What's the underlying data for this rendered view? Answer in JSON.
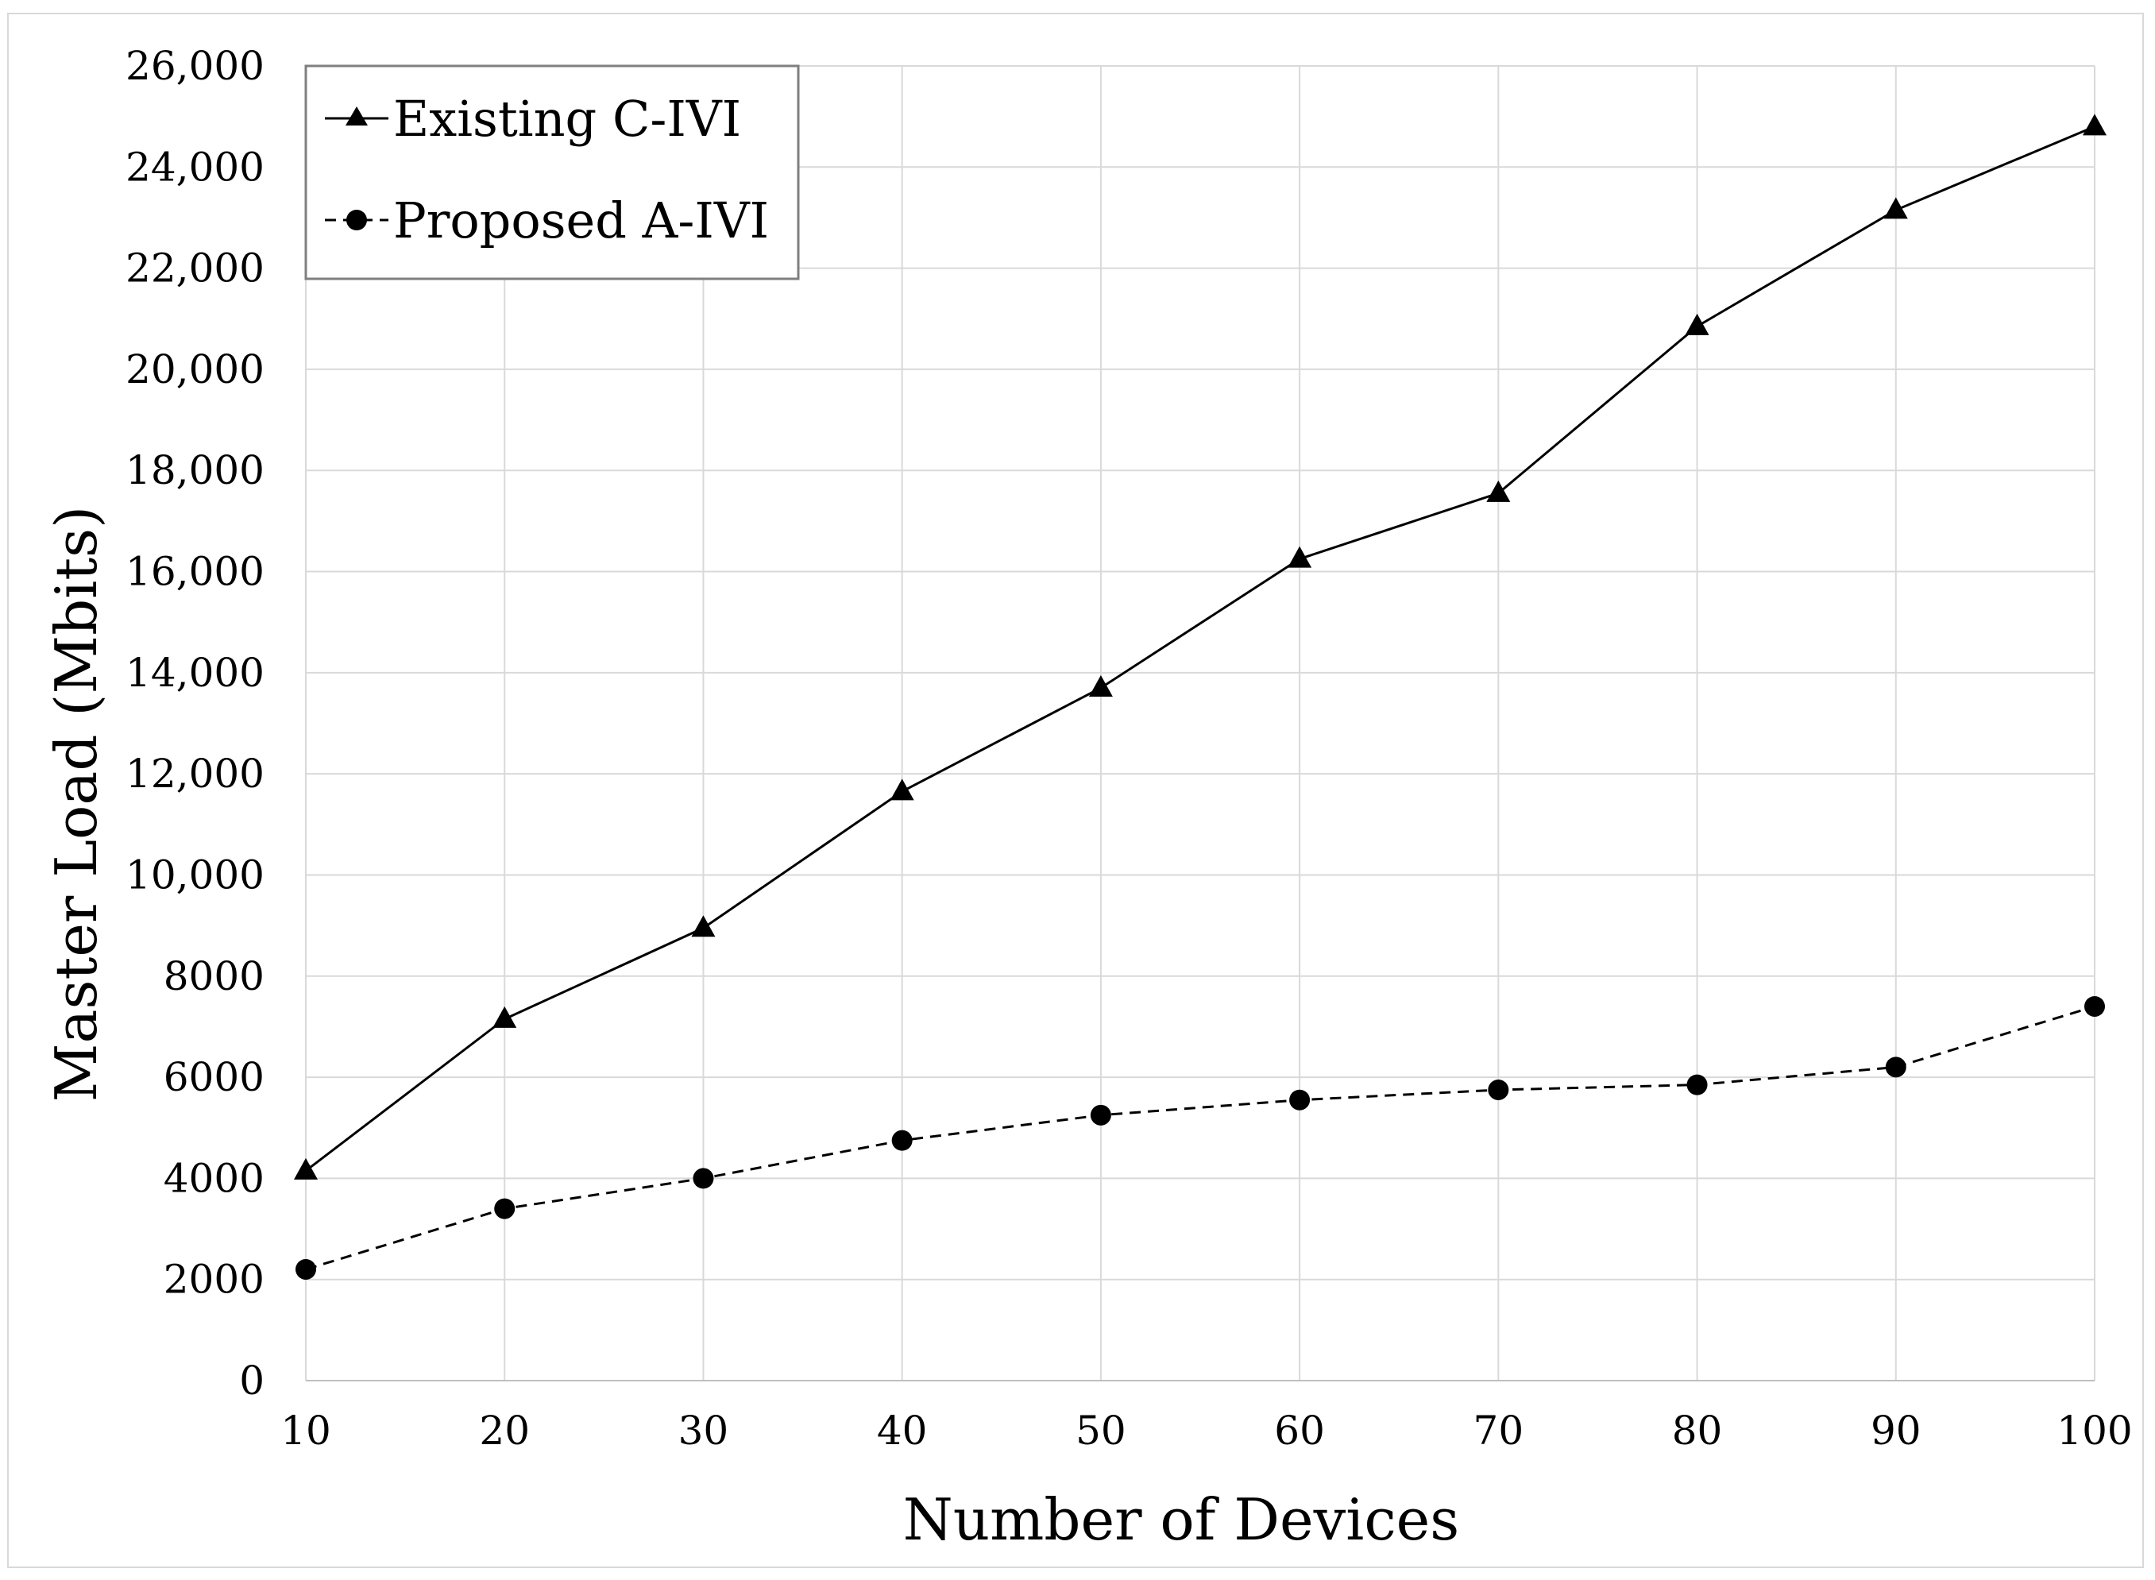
{
  "chart_data": {
    "type": "line",
    "title": "",
    "xlabel": "Number of Devices",
    "ylabel": "Master Load (Mbits)",
    "x": [
      10,
      20,
      30,
      40,
      50,
      60,
      70,
      80,
      90,
      100
    ],
    "x_tick_labels": [
      "10",
      "20",
      "30",
      "40",
      "50",
      "60",
      "70",
      "80",
      "90",
      "100"
    ],
    "y_tick_values": [
      0,
      2000,
      4000,
      6000,
      8000,
      10000,
      12000,
      14000,
      16000,
      18000,
      20000,
      22000,
      24000,
      26000
    ],
    "y_tick_labels": [
      "0",
      "2000",
      "4000",
      "6000",
      "8000",
      "10,000",
      "12,000",
      "14,000",
      "16,000",
      "18,000",
      "20,000",
      "22,000",
      "24,000",
      "26,000"
    ],
    "xlim": [
      10,
      100
    ],
    "ylim": [
      0,
      26000
    ],
    "grid": true,
    "legend_position": "top-left",
    "series": [
      {
        "name": "Existing C-IVI",
        "legend_label": "Existing C-IVI",
        "marker": "triangle",
        "line_style": "solid",
        "color": "#000000",
        "values": [
          4150,
          7150,
          8950,
          11650,
          13700,
          16250,
          17550,
          20850,
          23150,
          24800
        ]
      },
      {
        "name": "Proposed A-IVI",
        "legend_label": "Proposed A-IVI",
        "marker": "circle",
        "line_style": "dashed",
        "color": "#000000",
        "values": [
          2200,
          3400,
          4000,
          4750,
          5250,
          5550,
          5750,
          5850,
          6200,
          7400
        ]
      }
    ]
  }
}
